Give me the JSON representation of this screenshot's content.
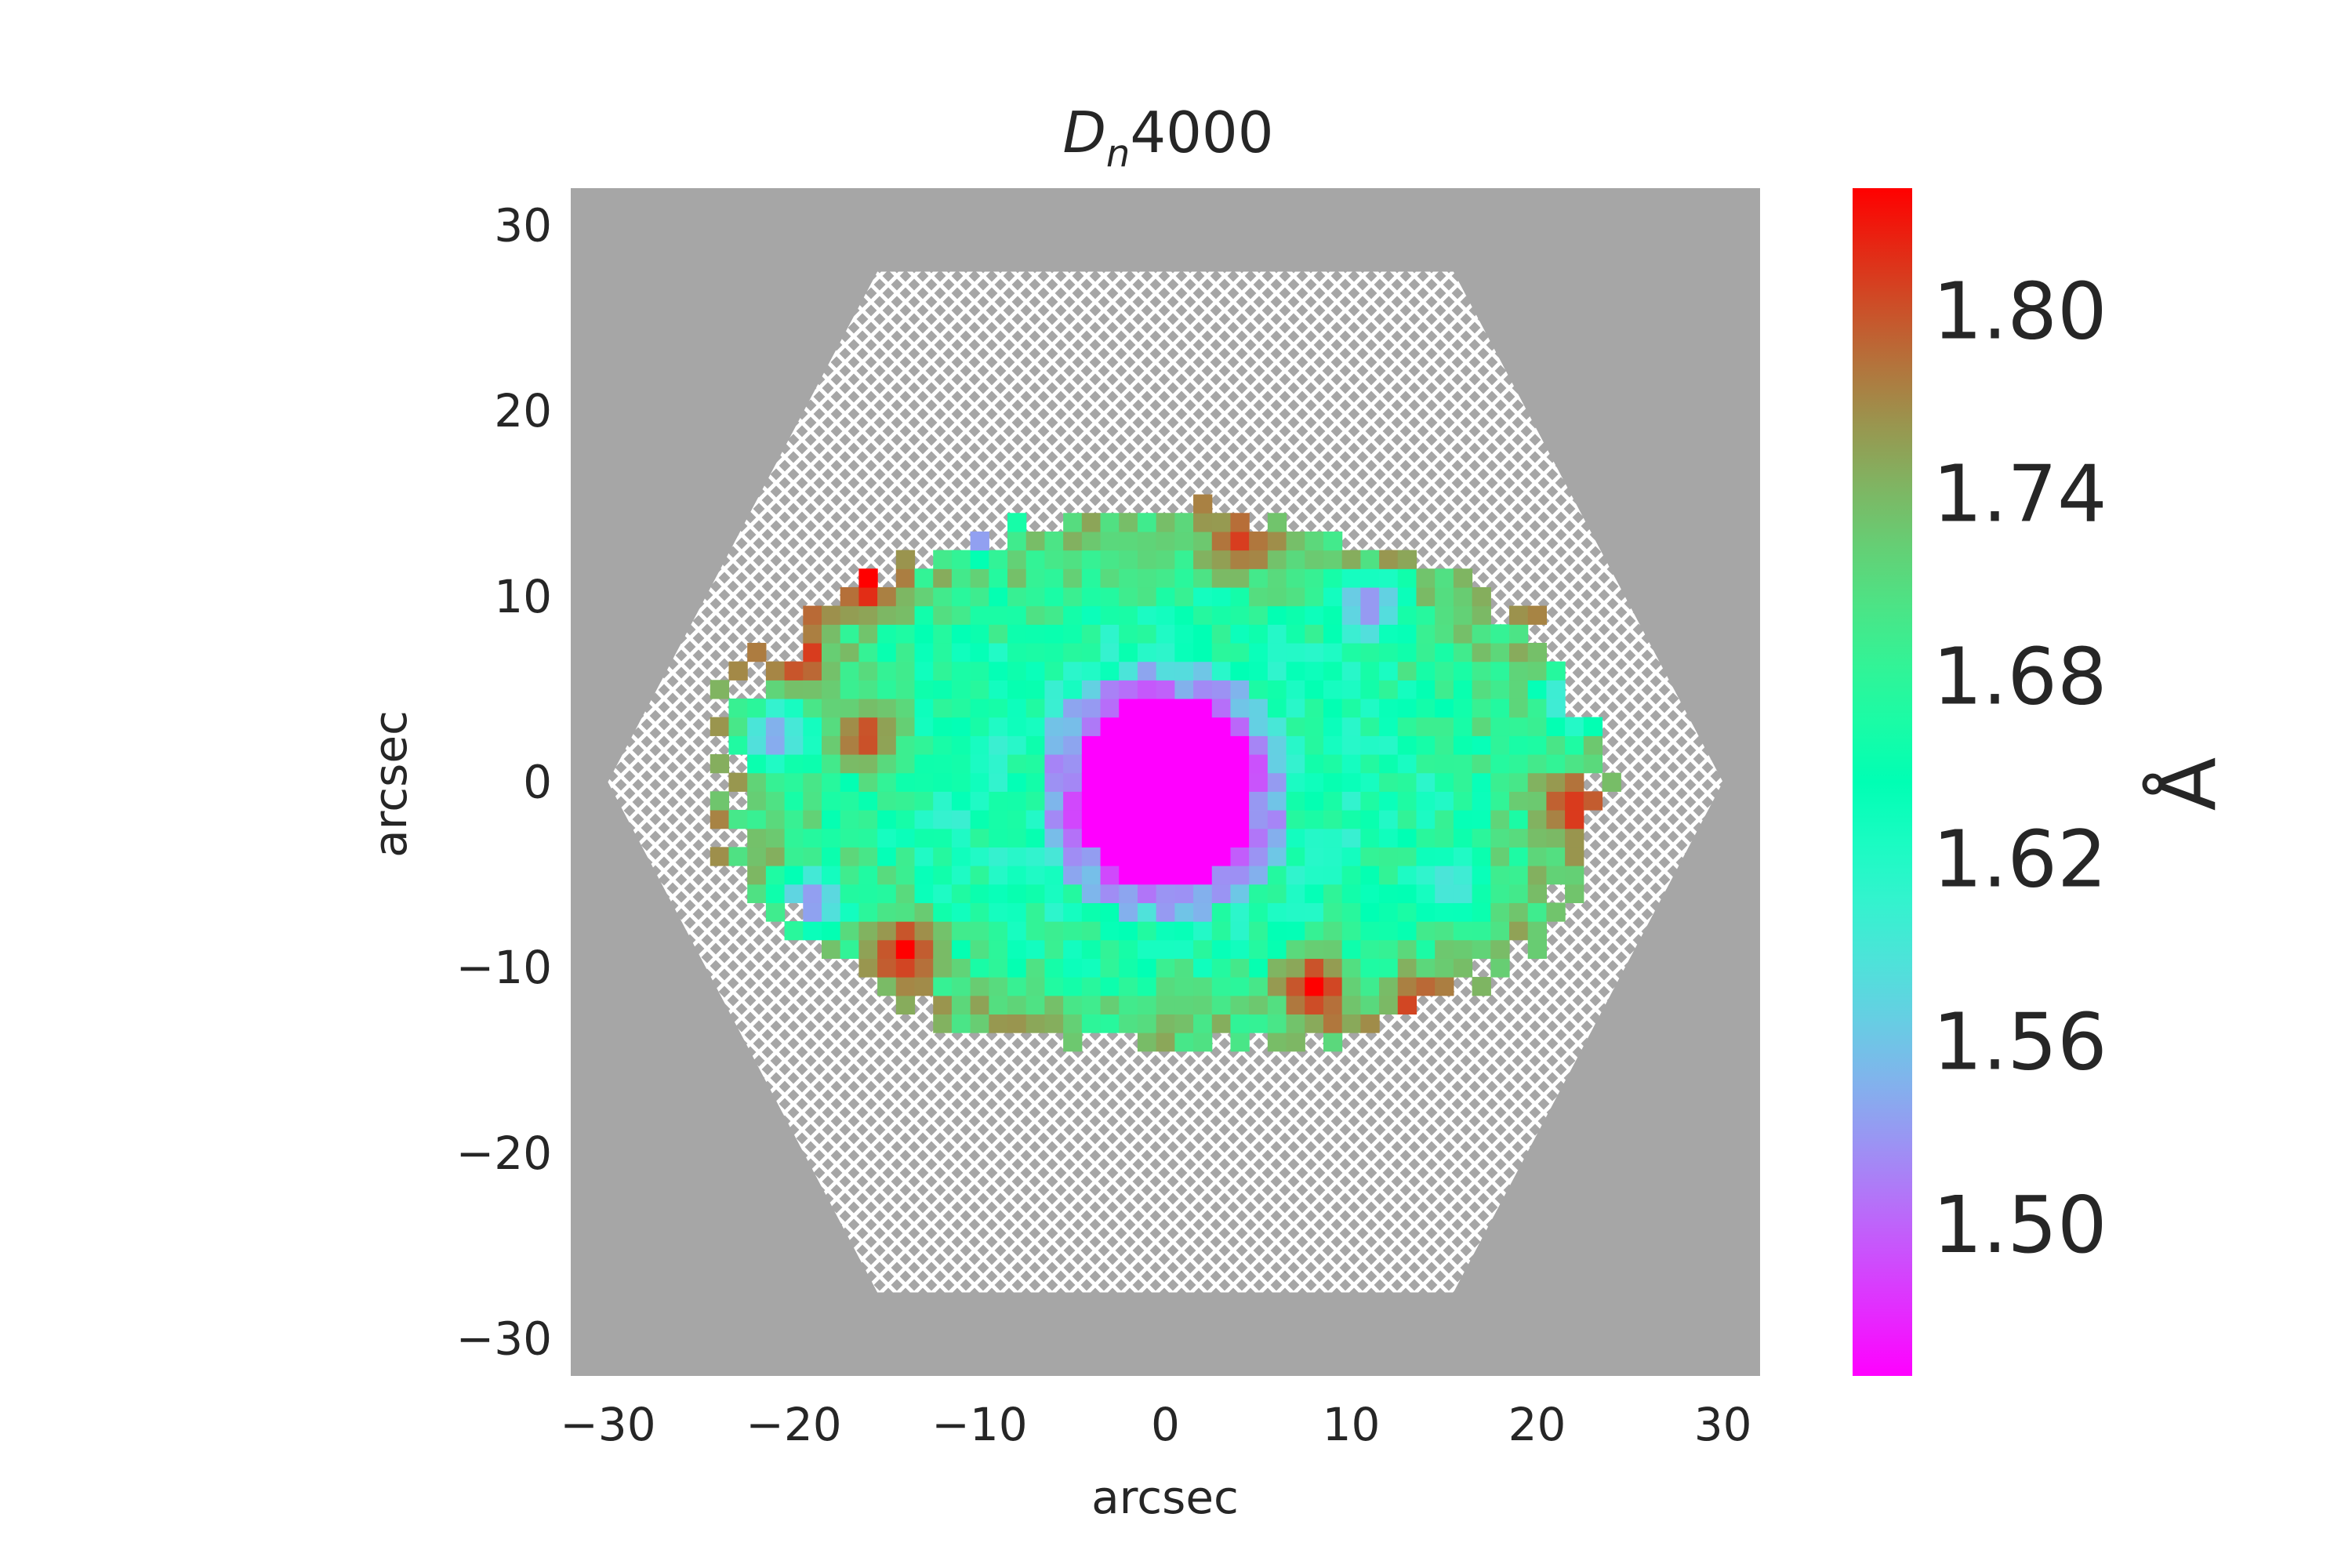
{
  "chart_data": {
    "type": "heatmap",
    "title": "D",
    "title_subscript": "n",
    "title_suffix": "4000",
    "xlabel": "arcsec",
    "ylabel": "arcsec",
    "xlim": [
      -32,
      32
    ],
    "ylim": [
      -32,
      32
    ],
    "xticks": [
      -30,
      -20,
      -10,
      0,
      10,
      20,
      30
    ],
    "yticks": [
      -30,
      -20,
      -10,
      0,
      10,
      20,
      30
    ],
    "xtick_labels": [
      "−30",
      "−20",
      "−10",
      "0",
      "10",
      "20",
      "30"
    ],
    "ytick_labels": [
      "−30",
      "−20",
      "−10",
      "0",
      "10",
      "20",
      "30"
    ],
    "background_color": "#a6a6a6",
    "hatch_region": "hexagon (no data, hatched)",
    "colormap": "rainbow",
    "colorbar": {
      "label": "Å",
      "range": [
        1.45,
        1.84
      ],
      "ticks": [
        1.5,
        1.56,
        1.62,
        1.68,
        1.74,
        1.8
      ],
      "tick_labels": [
        "1.50",
        "1.56",
        "1.62",
        "1.68",
        "1.74",
        "1.80"
      ]
    },
    "pixel_size_arcsec": 1.0,
    "data_summary": {
      "center_value": 1.45,
      "central_low_region_radius_arcsec": 5,
      "ring_low_region_radius_arcsec": 7,
      "mid_body_value": 1.64,
      "outer_ring_value": 1.73,
      "data_ellipse_semi_major_arcsec": 24,
      "data_ellipse_semi_minor_arcsec": 14.5
    },
    "features": [
      {
        "x": -21,
        "y": 2.5,
        "value": 1.53
      },
      {
        "x": -19,
        "y": -6.5,
        "value": 1.52
      },
      {
        "x": 11,
        "y": 9.5,
        "value": 1.52
      },
      {
        "x": 15.5,
        "y": -5.5,
        "value": 1.58
      },
      {
        "x": 22,
        "y": 4.5,
        "value": 1.55
      },
      {
        "x": -10,
        "y": 14,
        "value": 1.47
      },
      {
        "x": 8,
        "y": -11,
        "value": 1.84
      },
      {
        "x": -14,
        "y": -9,
        "value": 1.84
      },
      {
        "x": -20,
        "y": 7,
        "value": 1.84
      },
      {
        "x": -16,
        "y": 11,
        "value": 1.84
      },
      {
        "x": 22,
        "y": -1.5,
        "value": 1.82
      },
      {
        "x": -16,
        "y": 2.5,
        "value": 1.81
      },
      {
        "x": 4,
        "y": 13,
        "value": 1.81
      },
      {
        "x": 14,
        "y": -12,
        "value": 1.82
      }
    ]
  }
}
